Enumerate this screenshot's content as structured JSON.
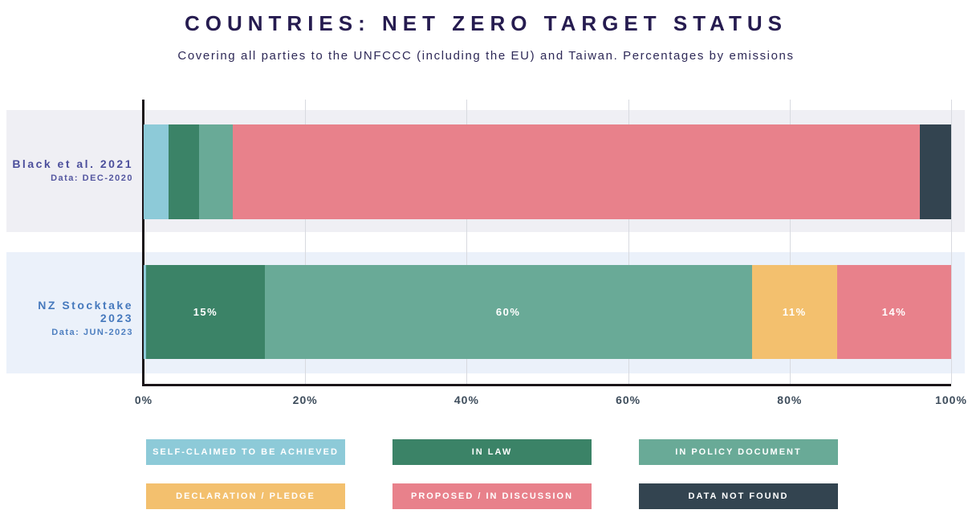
{
  "title": "COUNTRIES: NET ZERO TARGET STATUS",
  "subtitle": "Covering all parties to the UNFCCC (including the EU) and Taiwan. Percentages by emissions",
  "chart_data": {
    "type": "bar",
    "orientation": "horizontal",
    "stacked": true,
    "title": "COUNTRIES: NET ZERO TARGET STATUS",
    "subtitle": "Covering all parties to the UNFCCC (including the EU) and Taiwan. Percentages by emissions",
    "xlabel": "",
    "ylabel": "",
    "x_range": [
      0,
      100
    ],
    "x_ticks": [
      "0%",
      "20%",
      "40%",
      "60%",
      "80%",
      "100%"
    ],
    "grid": true,
    "legend_position": "bottom",
    "statuses": [
      {
        "name": "SELF-CLAIMED TO BE ACHIEVED",
        "color": "#8dcad8"
      },
      {
        "name": "IN LAW",
        "color": "#3b8367"
      },
      {
        "name": "IN POLICY DOCUMENT",
        "color": "#69aa97"
      },
      {
        "name": "DECLARATION / PLEDGE",
        "color": "#f3c06e"
      },
      {
        "name": "PROPOSED / IN DISCUSSION",
        "color": "#e8818b"
      },
      {
        "name": "DATA NOT FOUND",
        "color": "#334450"
      }
    ],
    "legend_rows": [
      [
        0,
        1,
        2
      ],
      [
        3,
        4,
        5
      ]
    ],
    "rows": [
      {
        "label": "Black et al. 2021",
        "sublabel": "Data: DEC-2020",
        "segments": [
          {
            "status": "SELF-CLAIMED TO BE ACHIEVED",
            "value": 3.1,
            "label": ""
          },
          {
            "status": "IN LAW",
            "value": 3.8,
            "label": ""
          },
          {
            "status": "IN POLICY DOCUMENT",
            "value": 4.1,
            "label": ""
          },
          {
            "status": "PROPOSED / IN DISCUSSION",
            "value": 85.1,
            "label": ""
          },
          {
            "status": "DATA NOT FOUND",
            "value": 3.9,
            "label": ""
          }
        ]
      },
      {
        "label": "NZ Stocktake 2023",
        "sublabel": "Data: JUN-2023",
        "segments": [
          {
            "status": "SELF-CLAIMED TO BE ACHIEVED",
            "value": 0.3,
            "label": ""
          },
          {
            "status": "IN LAW",
            "value": 14.7,
            "label": "15%"
          },
          {
            "status": "IN POLICY DOCUMENT",
            "value": 60.3,
            "label": "60%"
          },
          {
            "status": "DECLARATION / PLEDGE",
            "value": 10.6,
            "label": "11%"
          },
          {
            "status": "PROPOSED / IN DISCUSSION",
            "value": 14.1,
            "label": "14%"
          }
        ]
      }
    ],
    "colors": {
      "row_band_top": "#efeff4",
      "row_band_bottom": "#ebf1fa",
      "gridline": "#d8dae0",
      "axis": "#1b1519",
      "title_text": "#261c50",
      "row0_label_text": "#4c4f9c",
      "row1_label_text": "#4679bd",
      "tick_text": "#3e4d5c"
    }
  }
}
